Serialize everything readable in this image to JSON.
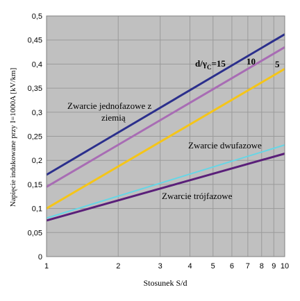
{
  "chart_data": {
    "type": "line",
    "xscale": "log",
    "xlim": [
      1,
      10
    ],
    "ylim": [
      0,
      0.5
    ],
    "xticks": [
      1,
      2,
      3,
      4,
      5,
      6,
      7,
      8,
      9,
      10
    ],
    "xtick_labels": [
      "1",
      "2",
      "3",
      "4",
      "5",
      "6",
      "7",
      "8",
      "9",
      "10"
    ],
    "yticks": [
      0,
      0.05,
      0.1,
      0.15,
      0.2,
      0.25,
      0.3,
      0.35,
      0.4,
      0.45,
      0.5
    ],
    "ytick_labels": [
      "0",
      "0,05",
      "0,1",
      "0,15",
      "0,2",
      "0,25",
      "0,3",
      "0,35",
      "0,4",
      "0,45",
      "0,5"
    ],
    "xlabel": "Stosunek S/d",
    "ylabel": "Napięcie indukowane przy I=1000A  [kV/km]",
    "grid": true,
    "background": "#c0c0c0",
    "series": [
      {
        "color": "#2b2f8c",
        "x": [
          1,
          10
        ],
        "y": [
          0.17,
          0.462
        ]
      },
      {
        "color": "#a86cb4",
        "x": [
          1,
          10
        ],
        "y": [
          0.145,
          0.435
        ]
      },
      {
        "color": "#f5c518",
        "x": [
          1,
          10
        ],
        "y": [
          0.1,
          0.39
        ]
      },
      {
        "color": "#66d6e6",
        "x": [
          1,
          10
        ],
        "y": [
          0.08,
          0.232
        ]
      },
      {
        "color": "#5a1f79",
        "x": [
          1,
          10
        ],
        "y": [
          0.075,
          0.214
        ]
      }
    ],
    "annotations": {
      "single_phase_line1": "Zwarcie jednofazowe z",
      "single_phase_line2": "ziemią",
      "two_phase": "Zwarcie dwufazowe",
      "three_phase": "Zwarcie trójfazowe",
      "ratio_main": "d/γ",
      "ratio_sub": "C",
      "ratio_eq": "=15",
      "ratio_10": "10",
      "ratio_5": "5"
    }
  }
}
